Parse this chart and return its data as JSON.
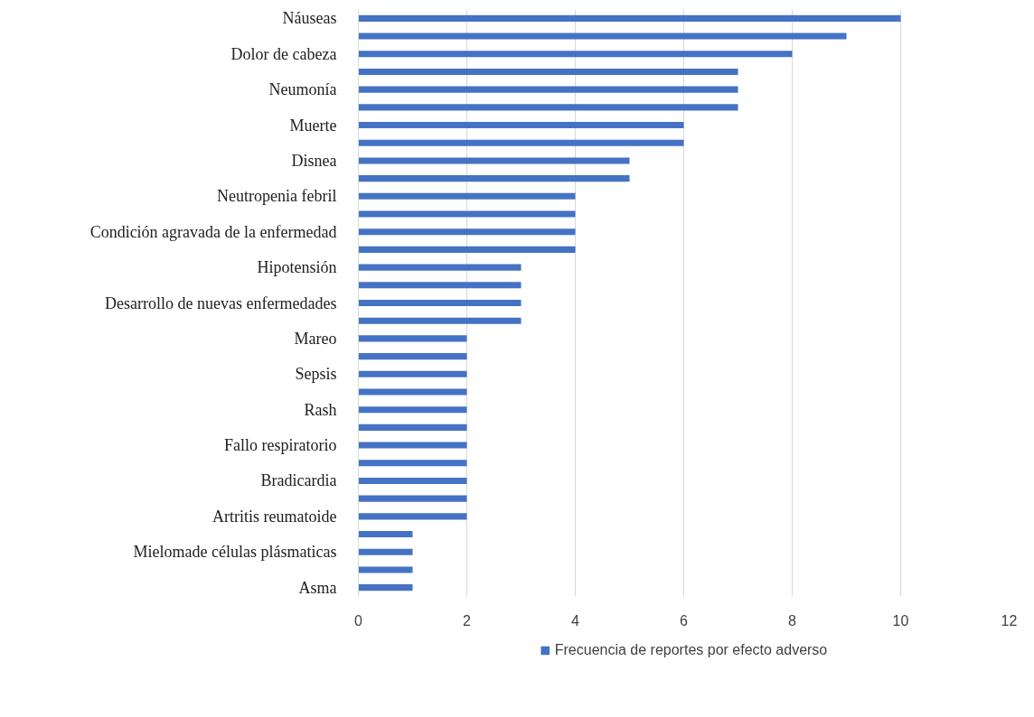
{
  "chart_data": {
    "type": "bar",
    "orientation": "horizontal",
    "categories": [
      "Náuseas",
      null,
      "Dolor de cabeza",
      null,
      "Neumonía",
      null,
      "Muerte",
      null,
      "Disnea",
      null,
      "Neutropenia febril",
      null,
      "Condición agravada de la enfermedad",
      null,
      "Hipotensión",
      null,
      "Desarrollo de nuevas enfermedades",
      null,
      "Mareo",
      null,
      "Sepsis",
      null,
      "Rash",
      null,
      "Fallo respiratorio",
      null,
      "Bradicardia",
      null,
      "Artritis reumatoide",
      null,
      "Mielomade células plásmaticas",
      null,
      "Asma"
    ],
    "series": [
      {
        "name": "Frecuencia de reportes por efecto adverso",
        "color": "#4472c4",
        "values": [
          10,
          9,
          8,
          7,
          7,
          7,
          6,
          6,
          5,
          5,
          4,
          4,
          4,
          4,
          3,
          3,
          3,
          3,
          2,
          2,
          2,
          2,
          2,
          2,
          2,
          2,
          2,
          2,
          2,
          1,
          1,
          1,
          1
        ]
      }
    ],
    "xlim": [
      0,
      12
    ],
    "xticks": [
      0,
      2,
      4,
      6,
      8,
      10,
      12
    ],
    "grid": "x",
    "legend": "bottom"
  }
}
